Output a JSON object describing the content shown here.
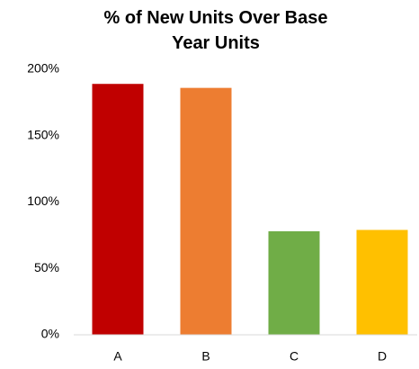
{
  "chart_data": {
    "type": "bar",
    "title": "% of New Units Over Base Year Units",
    "categories": [
      "A",
      "B",
      "C",
      "D"
    ],
    "values": [
      189,
      186,
      78,
      79
    ],
    "colors": [
      "#c00000",
      "#ed7d31",
      "#70ad47",
      "#ffc000"
    ],
    "ylim": [
      0,
      200
    ],
    "yticks": [
      {
        "value": 0,
        "label": "0%"
      },
      {
        "value": 50,
        "label": "50%"
      },
      {
        "value": 100,
        "label": "100%"
      },
      {
        "value": 150,
        "label": "150%"
      },
      {
        "value": 200,
        "label": "200%"
      }
    ],
    "grid": false
  }
}
